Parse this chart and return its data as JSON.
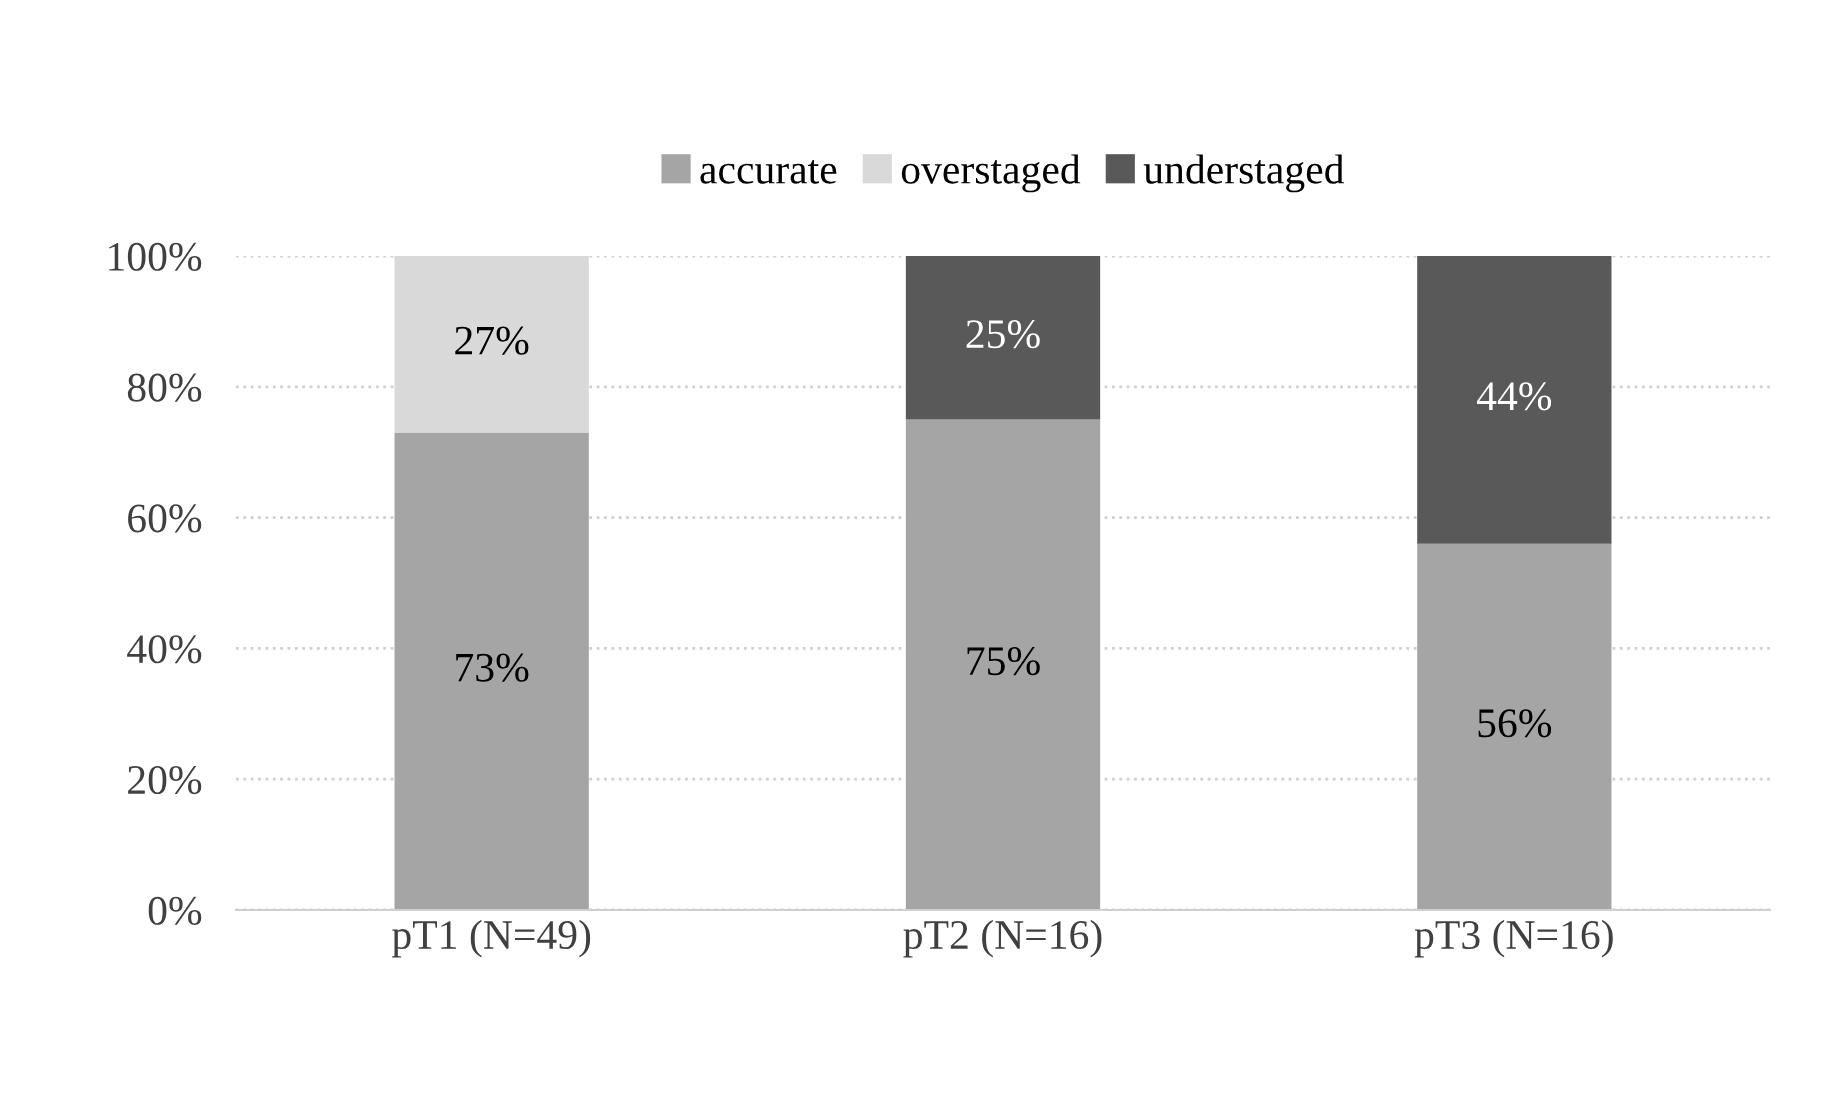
{
  "chart_data": {
    "type": "bar",
    "stacked": true,
    "categories": [
      "pT1 (N=49)",
      "pT2 (N=16)",
      "pT3 (N=16)"
    ],
    "series": [
      {
        "name": "accurate",
        "color": "#a5a5a5",
        "values": [
          73,
          75,
          56
        ],
        "value_labels": [
          "73%",
          "75%",
          "56%"
        ]
      },
      {
        "name": "overstaged",
        "color": "#d9d9d9",
        "values": [
          27,
          null,
          null
        ],
        "value_labels": [
          "27%",
          null,
          null
        ]
      },
      {
        "name": "understaged",
        "color": "#595959",
        "values": [
          null,
          25,
          44
        ],
        "value_labels": [
          null,
          "25%",
          "44%"
        ]
      }
    ],
    "ylim": [
      0,
      100
    ],
    "yticks": [
      {
        "value": 0,
        "label": "0%"
      },
      {
        "value": 20,
        "label": "20%"
      },
      {
        "value": 40,
        "label": "40%"
      },
      {
        "value": 60,
        "label": "60%"
      },
      {
        "value": 80,
        "label": "80%"
      },
      {
        "value": 100,
        "label": "100%"
      }
    ],
    "grid": "y",
    "legend": "top"
  }
}
